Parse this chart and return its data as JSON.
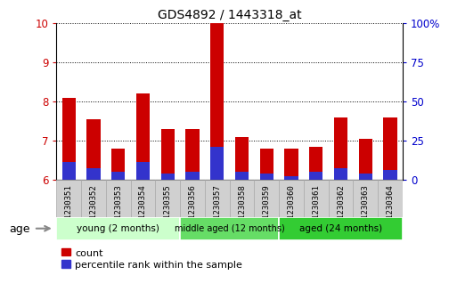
{
  "title": "GDS4892 / 1443318_at",
  "samples": [
    "GSM1230351",
    "GSM1230352",
    "GSM1230353",
    "GSM1230354",
    "GSM1230355",
    "GSM1230356",
    "GSM1230357",
    "GSM1230358",
    "GSM1230359",
    "GSM1230360",
    "GSM1230361",
    "GSM1230362",
    "GSM1230363",
    "GSM1230364"
  ],
  "count_values": [
    8.1,
    7.55,
    6.8,
    8.2,
    7.3,
    7.3,
    10.0,
    7.1,
    6.8,
    6.8,
    6.85,
    7.6,
    7.05,
    7.6
  ],
  "percentile_values": [
    6.45,
    6.3,
    6.2,
    6.45,
    6.15,
    6.2,
    6.85,
    6.2,
    6.15,
    6.1,
    6.2,
    6.3,
    6.15,
    6.25
  ],
  "ymin": 6,
  "ymax": 10,
  "yticks": [
    6,
    7,
    8,
    9,
    10
  ],
  "right_ytick_vals": [
    6,
    7,
    8,
    9,
    10
  ],
  "right_ytick_labels": [
    "0",
    "25",
    "50",
    "75",
    "100%"
  ],
  "bar_color": "#cc0000",
  "percentile_color": "#3333cc",
  "grid_color": "#000000",
  "groups": [
    {
      "label": "young (2 months)",
      "start": 0,
      "end": 5,
      "color": "#ccffcc"
    },
    {
      "label": "middle aged (12 months)",
      "start": 5,
      "end": 9,
      "color": "#66dd66"
    },
    {
      "label": "aged (24 months)",
      "start": 9,
      "end": 14,
      "color": "#33cc33"
    }
  ],
  "xlabel_age": "age",
  "legend_count": "count",
  "legend_percentile": "percentile rank within the sample",
  "left_label_color": "#cc0000",
  "right_label_color": "#0000cc",
  "tick_bg_color": "#d0d0d0",
  "tick_edge_color": "#aaaaaa"
}
